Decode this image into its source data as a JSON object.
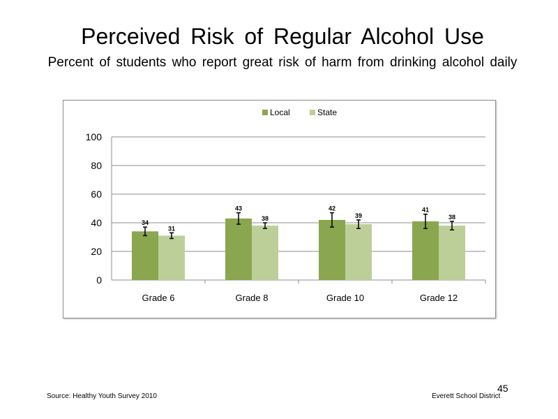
{
  "slide": {
    "title": "Perceived Risk of Regular Alcohol Use",
    "subtitle": "Percent of students who report great risk of harm from drinking alcohol daily",
    "source": "Source: Healthy Youth Survey 2010",
    "organization": "Everett School District",
    "page_number": "45"
  },
  "chart_data": {
    "type": "bar",
    "categories": [
      "Grade 6",
      "Grade 8",
      "Grade 10",
      "Grade 12"
    ],
    "series": [
      {
        "name": "Local",
        "values": [
          34,
          43,
          42,
          41
        ],
        "color": "#8aa64e",
        "error": [
          3,
          4,
          5,
          5
        ]
      },
      {
        "name": "State",
        "values": [
          31,
          38,
          39,
          38
        ],
        "color": "#bccf98",
        "error": [
          2,
          2,
          3,
          3
        ]
      }
    ],
    "data_labels": [
      [
        "34",
        "43",
        "42",
        "41"
      ],
      [
        "31",
        "38",
        "39",
        "38"
      ]
    ],
    "ylim": [
      0,
      100
    ],
    "yticks": [
      "0",
      "20",
      "40",
      "60",
      "80",
      "100"
    ],
    "grid": true,
    "legend": "top-center"
  }
}
